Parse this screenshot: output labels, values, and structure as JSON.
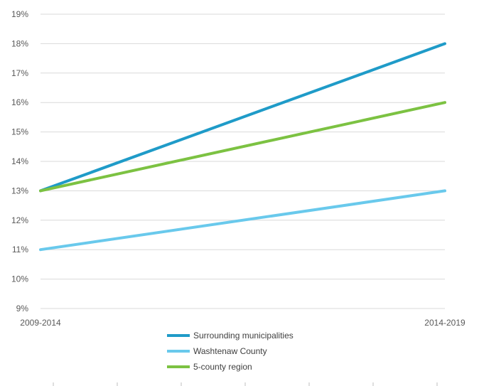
{
  "chart_data": {
    "type": "line",
    "categories": [
      "2009-2014",
      "2014-2019"
    ],
    "ylim": [
      9,
      19
    ],
    "yticks": [
      "9%",
      "10%",
      "11%",
      "12%",
      "13%",
      "14%",
      "15%",
      "16%",
      "17%",
      "18%",
      "19%"
    ],
    "grid": true,
    "legend_position": "bottom",
    "series": [
      {
        "name": "Surrounding municipalities",
        "values": [
          13,
          18
        ],
        "color": "#1f9bc8"
      },
      {
        "name": "Washtenaw County",
        "values": [
          11,
          13
        ],
        "color": "#69c9ec"
      },
      {
        "name": "5-county region",
        "values": [
          13,
          16
        ],
        "color": "#7cc242"
      }
    ]
  }
}
